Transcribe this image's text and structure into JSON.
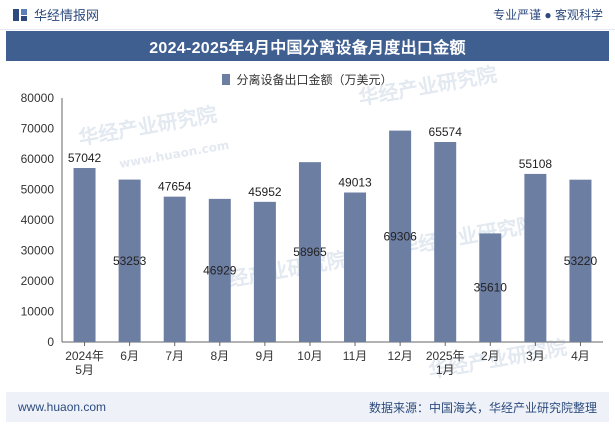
{
  "header": {
    "brand_name": "华经情报网",
    "tagline": "专业严谨 ● 客观科学"
  },
  "footer": {
    "website": "www.huaon.com",
    "source": "数据来源：中国海关，华经产业研究院整理"
  },
  "watermark": {
    "text": "华经产业研究院",
    "url": "www.huaon.com"
  },
  "colors": {
    "bar": "#6d7ea3",
    "title_bg": "#3f5f90",
    "brand": "#2c4a7d"
  },
  "chart_data": {
    "type": "bar",
    "title": "2024-2025年4月中国分离设备月度出口金额",
    "legend": "分离设备出口金额（万美元）",
    "categories": [
      "2024年\n5月",
      "6月",
      "7月",
      "8月",
      "9月",
      "10月",
      "11月",
      "12月",
      "2025年\n1月",
      "2月",
      "3月",
      "4月"
    ],
    "values": [
      57042,
      53253,
      47654,
      46929,
      45952,
      58965,
      49013,
      69306,
      65574,
      35610,
      55108,
      53220
    ],
    "label_inside": [
      false,
      true,
      false,
      true,
      false,
      true,
      false,
      true,
      false,
      true,
      false,
      true
    ],
    "ylim": [
      0,
      80000
    ],
    "yticks": [
      0,
      10000,
      20000,
      30000,
      40000,
      50000,
      60000,
      70000,
      80000
    ],
    "xlabel": "",
    "ylabel": ""
  }
}
